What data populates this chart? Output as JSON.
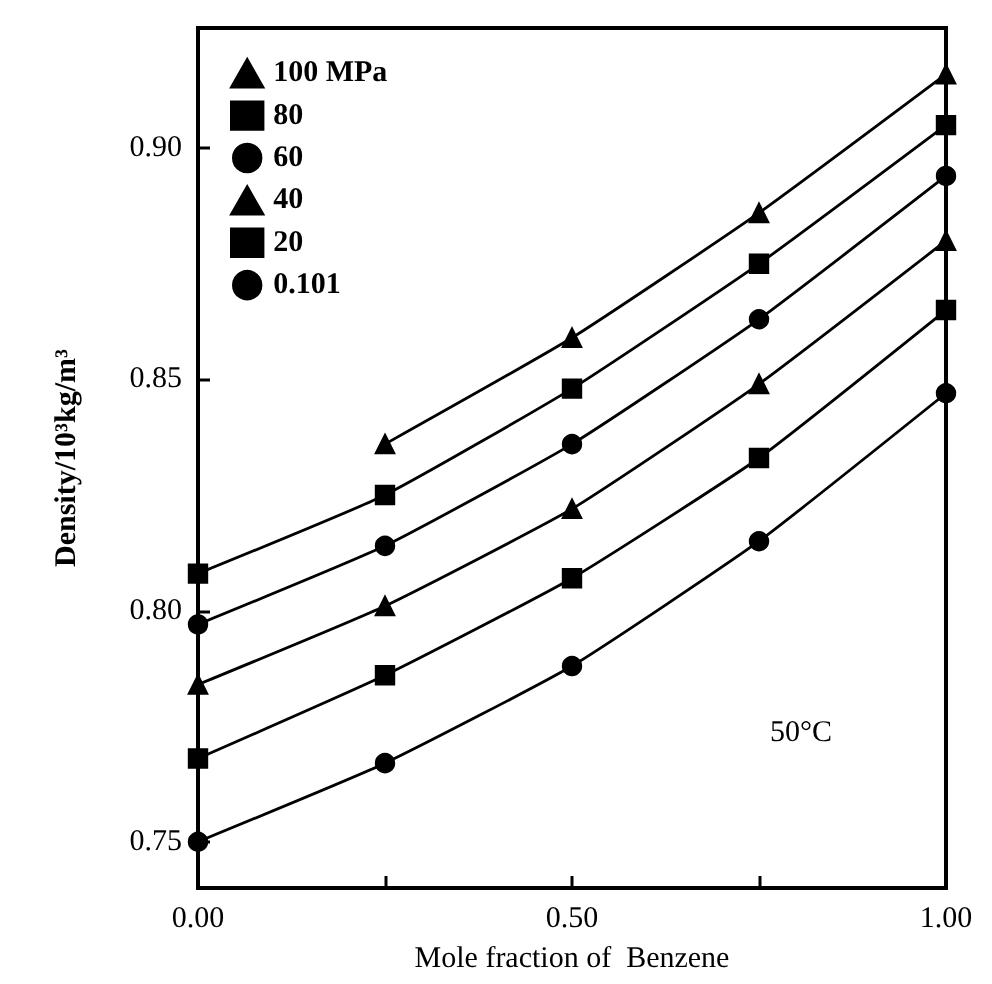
{
  "chart_data": {
    "type": "line",
    "xlabel": "Mole fraction of  Benzene",
    "ylabel": "Density/10³kg/m³",
    "annotations": [
      "50°C"
    ],
    "x": [
      0,
      0.25,
      0.5,
      0.75,
      1.0
    ],
    "series": [
      {
        "name": "100 MPa",
        "color": "#000000",
        "marker": "triangle",
        "values": [
          null,
          0.836,
          0.859,
          0.886,
          0.916
        ]
      },
      {
        "name": "80",
        "color": "#000000",
        "marker": "square",
        "values": [
          0.808,
          0.825,
          0.848,
          0.875,
          0.905
        ]
      },
      {
        "name": "60",
        "color": "#000000",
        "marker": "circle",
        "values": [
          0.797,
          0.814,
          0.836,
          0.863,
          0.894
        ]
      },
      {
        "name": "40",
        "color": "#000000",
        "marker": "triangle",
        "values": [
          0.784,
          0.801,
          0.822,
          0.849,
          0.88
        ]
      },
      {
        "name": "20",
        "color": "#000000",
        "marker": "square",
        "values": [
          0.768,
          0.786,
          0.807,
          0.833,
          0.865
        ]
      },
      {
        "name": "0.101",
        "color": "#000000",
        "marker": "circle",
        "values": [
          0.75,
          0.767,
          0.788,
          0.815,
          0.847
        ]
      }
    ],
    "xlim": [
      0,
      1
    ],
    "ylim": [
      0.74,
      0.926
    ],
    "xticks": [
      {
        "value": 0,
        "label": "0.00"
      },
      {
        "value": 0.25,
        "label": null
      },
      {
        "value": 0.5,
        "label": "0.50"
      },
      {
        "value": 0.75,
        "label": null
      },
      {
        "value": 1,
        "label": "1.00"
      }
    ],
    "yticks": [
      {
        "value": 0.75,
        "label": "0.75"
      },
      {
        "value": 0.8,
        "label": "0.80"
      },
      {
        "value": 0.85,
        "label": "0.85"
      },
      {
        "value": 0.9,
        "label": "0.90"
      }
    ],
    "grid": false,
    "legend": "top left",
    "line_style": "solid"
  }
}
